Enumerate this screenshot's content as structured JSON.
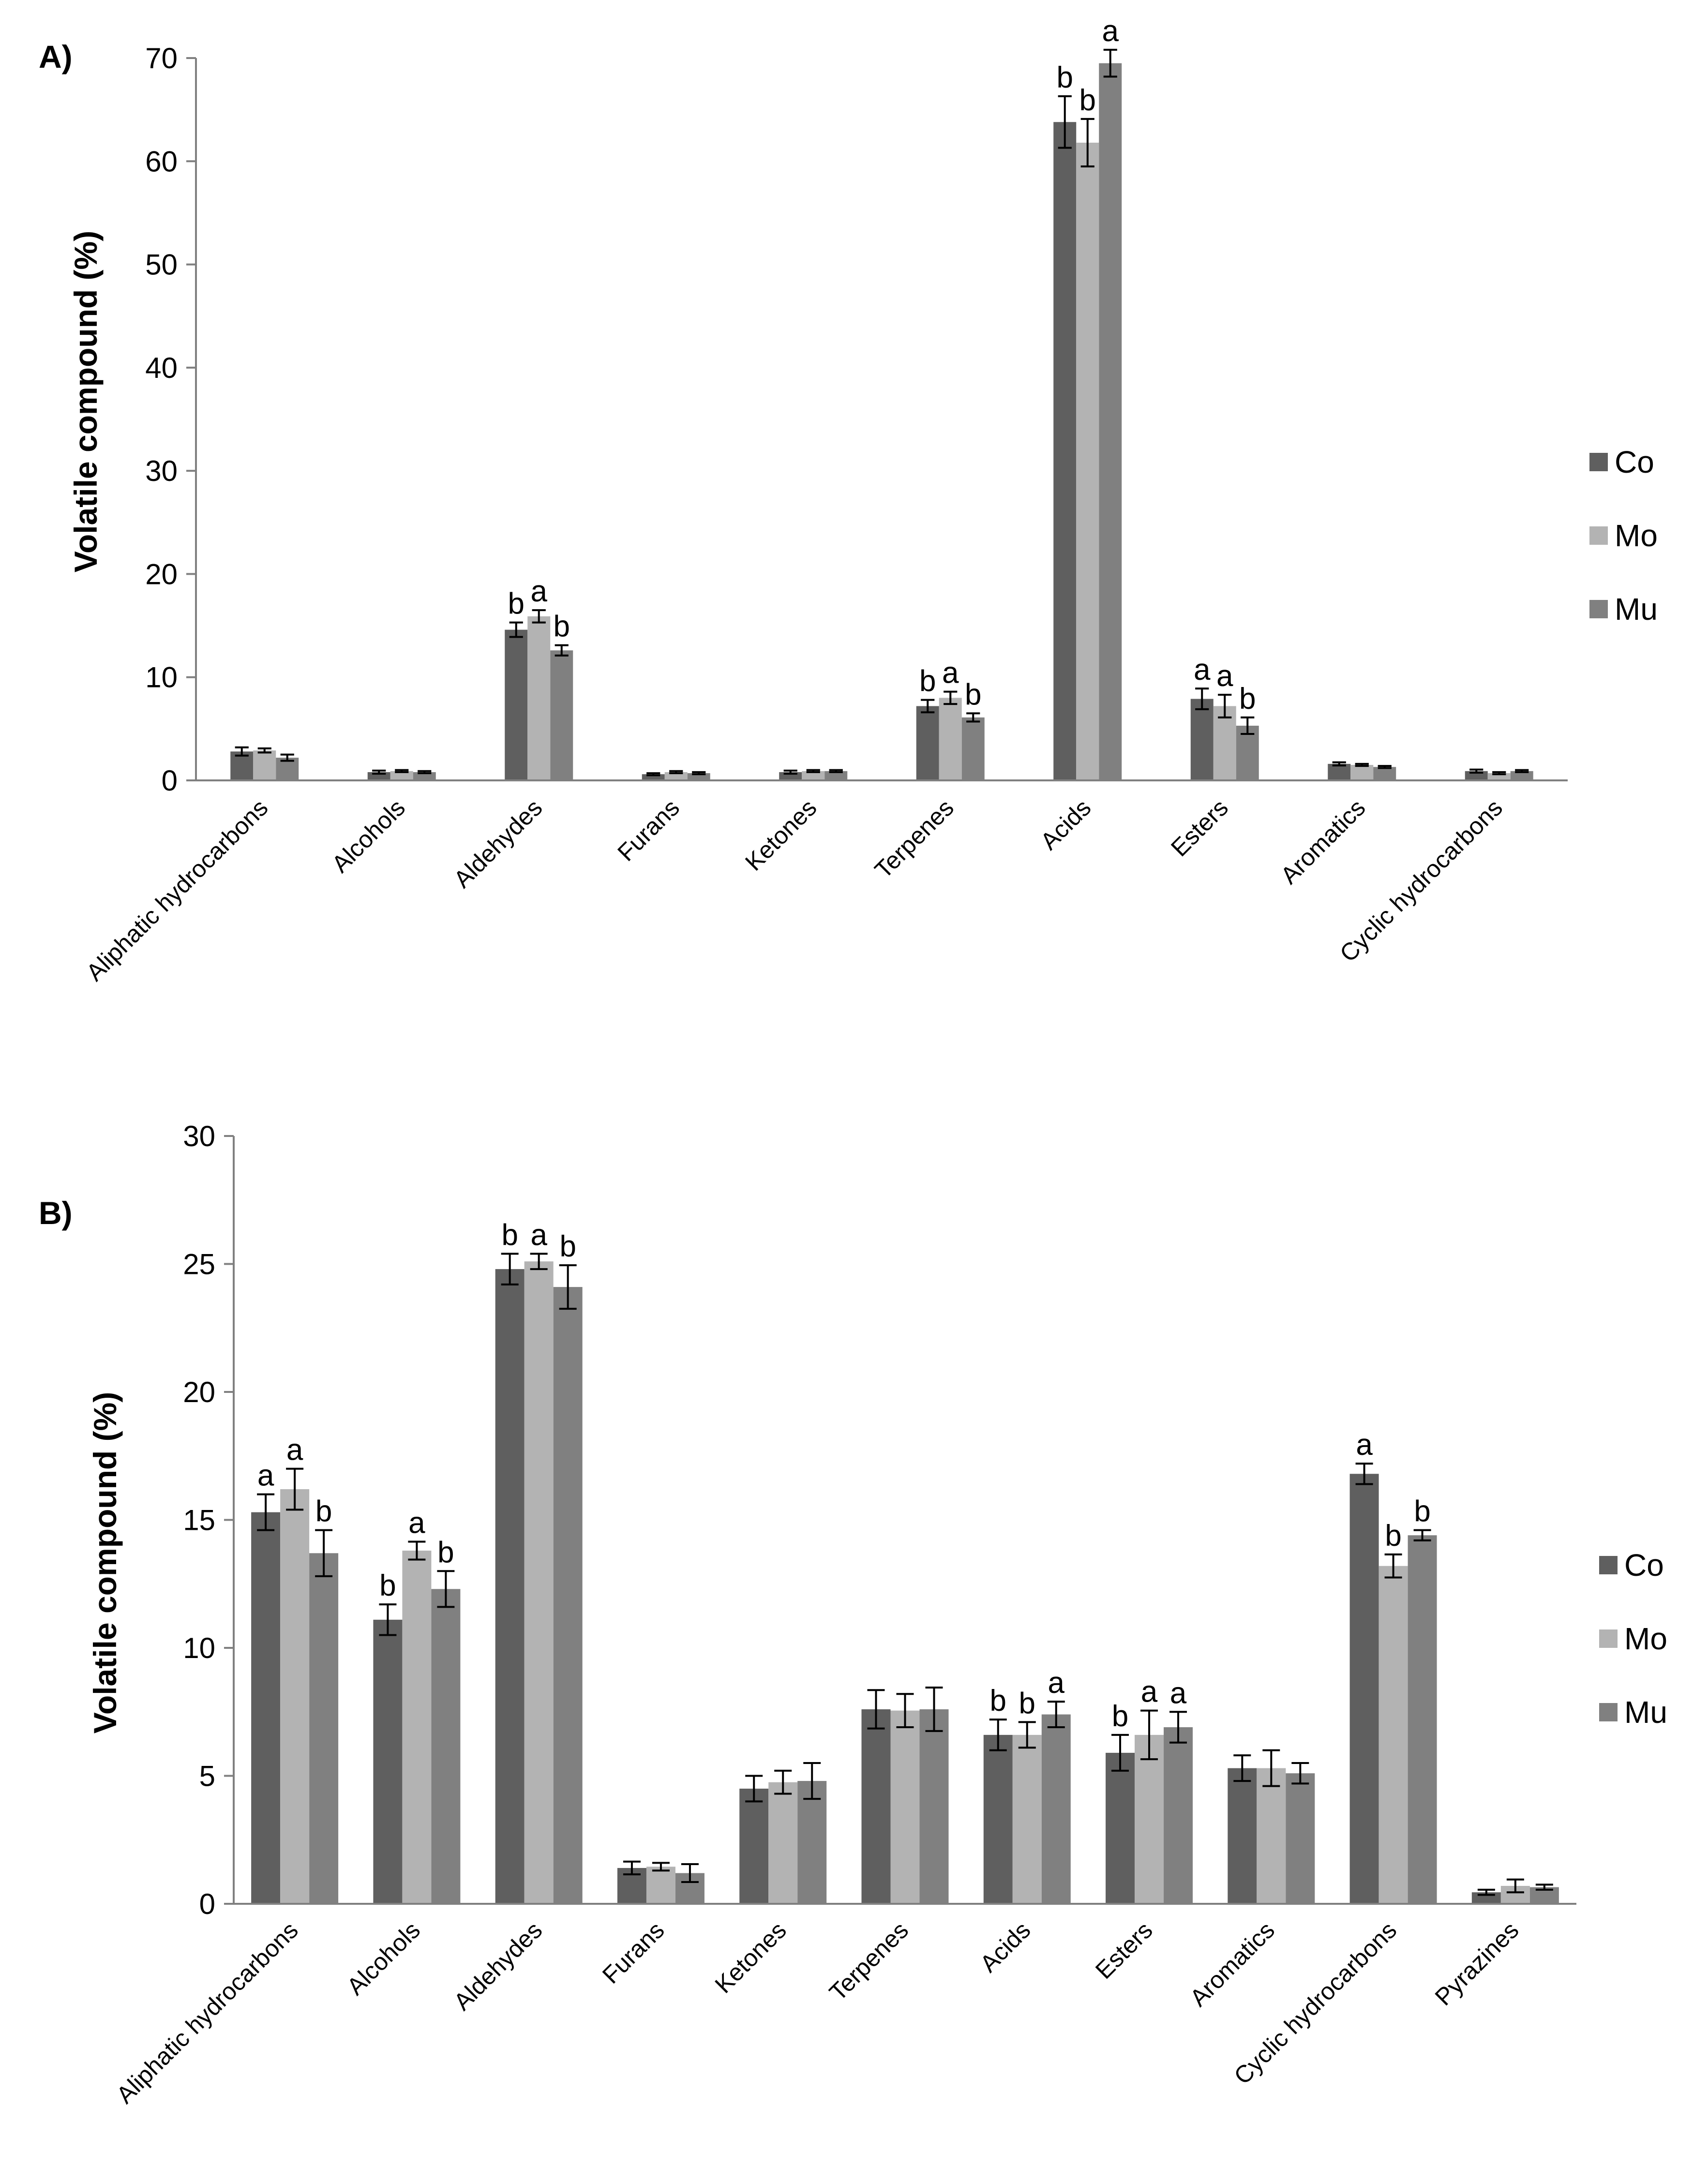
{
  "colors": {
    "Co": "#5f5f5f",
    "Mo": "#b3b3b3",
    "Mu": "#808080",
    "axis": "#808080",
    "error": "#000000"
  },
  "chart_data": [
    {
      "type": "bar",
      "panel": "A)",
      "title": "",
      "xlabel": "",
      "ylabel": "Volatile compound (%)",
      "ylim": [
        0,
        70
      ],
      "yticks": [
        0,
        10,
        20,
        30,
        40,
        50,
        60,
        70
      ],
      "grid": false,
      "legend_position": "right",
      "categories": [
        "Aliphatic hydrocarbons",
        "Alcohols",
        "Aldehydes",
        "Furans",
        "Ketones",
        "Terpenes",
        "Acids",
        "Esters",
        "Aromatics",
        "Cyclic hydrocarbons"
      ],
      "series": [
        {
          "name": "Co",
          "values": [
            2.8,
            0.8,
            14.6,
            0.6,
            0.8,
            7.2,
            63.8,
            7.9,
            1.6,
            0.9
          ],
          "errors": [
            0.4,
            0.15,
            0.7,
            0.1,
            0.15,
            0.6,
            2.5,
            1.0,
            0.15,
            0.15
          ],
          "letters": [
            "",
            "",
            "b",
            "",
            "",
            "b",
            "b",
            "a",
            "",
            ""
          ]
        },
        {
          "name": "Mo",
          "values": [
            2.9,
            0.9,
            15.9,
            0.8,
            0.9,
            8.0,
            61.8,
            7.2,
            1.5,
            0.7
          ],
          "errors": [
            0.2,
            0.1,
            0.6,
            0.1,
            0.1,
            0.6,
            2.3,
            1.1,
            0.1,
            0.1
          ],
          "letters": [
            "",
            "",
            "a",
            "",
            "",
            "a",
            "b",
            "a",
            "",
            ""
          ]
        },
        {
          "name": "Mu",
          "values": [
            2.2,
            0.8,
            12.6,
            0.7,
            0.9,
            6.1,
            69.5,
            5.3,
            1.3,
            0.9
          ],
          "errors": [
            0.3,
            0.1,
            0.5,
            0.1,
            0.1,
            0.4,
            1.3,
            0.8,
            0.1,
            0.1
          ],
          "letters": [
            "",
            "",
            "b",
            "",
            "",
            "b",
            "a",
            "b",
            "",
            ""
          ]
        }
      ]
    },
    {
      "type": "bar",
      "panel": "B)",
      "title": "",
      "xlabel": "",
      "ylabel": "Volatile compound (%)",
      "ylim": [
        0,
        30
      ],
      "yticks": [
        0,
        5,
        10,
        15,
        20,
        25,
        30
      ],
      "grid": false,
      "legend_position": "right",
      "categories": [
        "Aliphatic hydrocarbons",
        "Alcohols",
        "Aldehydes",
        "Furans",
        "Ketones",
        "Terpenes",
        "Acids",
        "Esters",
        "Aromatics",
        "Cyclic hydrocarbons",
        "Pyrazines"
      ],
      "series": [
        {
          "name": "Co",
          "values": [
            15.3,
            11.1,
            24.8,
            1.4,
            4.5,
            7.6,
            6.6,
            5.9,
            5.3,
            16.8,
            0.45
          ],
          "errors": [
            0.7,
            0.6,
            0.6,
            0.25,
            0.5,
            0.75,
            0.6,
            0.7,
            0.5,
            0.4,
            0.1
          ],
          "letters": [
            "a",
            "b",
            "b",
            "",
            "",
            "",
            "b",
            "b",
            "",
            "a",
            ""
          ]
        },
        {
          "name": "Mo",
          "values": [
            16.2,
            13.8,
            25.1,
            1.45,
            4.75,
            7.55,
            6.6,
            6.6,
            5.3,
            13.2,
            0.7
          ],
          "errors": [
            0.8,
            0.35,
            0.3,
            0.15,
            0.45,
            0.65,
            0.5,
            0.95,
            0.7,
            0.45,
            0.25
          ],
          "letters": [
            "a",
            "a",
            "a",
            "",
            "",
            "",
            "b",
            "a",
            "",
            "b",
            ""
          ]
        },
        {
          "name": "Mu",
          "values": [
            13.7,
            12.3,
            24.1,
            1.2,
            4.8,
            7.6,
            7.4,
            6.9,
            5.1,
            14.4,
            0.65
          ],
          "errors": [
            0.9,
            0.7,
            0.85,
            0.35,
            0.7,
            0.85,
            0.5,
            0.6,
            0.4,
            0.2,
            0.1
          ],
          "letters": [
            "b",
            "b",
            "b",
            "",
            "",
            "",
            "a",
            "a",
            "",
            "b",
            ""
          ]
        }
      ]
    }
  ]
}
